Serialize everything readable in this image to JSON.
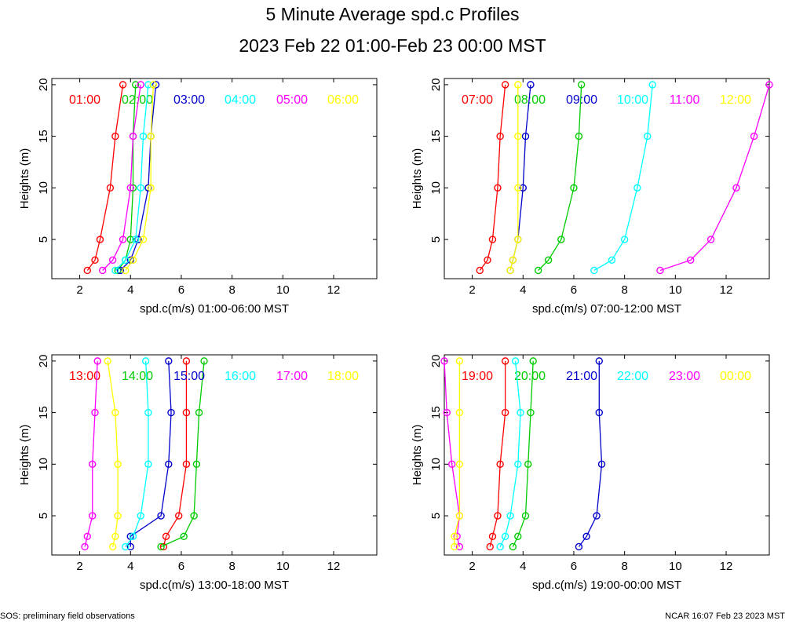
{
  "title": "5 Minute Average spd.c Profiles",
  "subtitle": "2023 Feb 22 01:00-Feb 23 00:00 MST",
  "footer_left": "SOS: preliminary field observations",
  "footer_right": "NCAR 16:07 Feb 23 2023 MST",
  "colors": {
    "red": "#ff0000",
    "green": "#00cc00",
    "blue": "#0000cc",
    "cyan": "#00ffff",
    "magenta": "#ff00ff",
    "yellow": "#ffff00",
    "black": "#000000",
    "background": "#ffffff"
  },
  "chart_data": [
    {
      "type": "line",
      "xlabel": "spd.c(m/s) 01:00-06:00 MST",
      "ylabel": "Heights (m)",
      "xlim": [
        0.9,
        13.7
      ],
      "ylim": [
        1.2,
        20.6
      ],
      "xticks": [
        2,
        4,
        6,
        8,
        10,
        12
      ],
      "yticks": [
        5,
        10,
        15,
        20
      ],
      "heights": [
        2,
        3,
        5,
        10,
        15,
        20
      ],
      "series": [
        {
          "name": "01:00",
          "color": "red",
          "values": [
            2.3,
            2.6,
            2.8,
            3.2,
            3.4,
            3.7
          ]
        },
        {
          "name": "02:00",
          "color": "green",
          "values": [
            3.5,
            3.8,
            4.0,
            4.1,
            4.1,
            4.2
          ]
        },
        {
          "name": "03:00",
          "color": "blue",
          "values": [
            3.6,
            4.0,
            4.3,
            4.7,
            4.8,
            5.0
          ]
        },
        {
          "name": "04:00",
          "color": "cyan",
          "values": [
            3.4,
            3.8,
            4.2,
            4.4,
            4.5,
            4.7
          ]
        },
        {
          "name": "05:00",
          "color": "magenta",
          "values": [
            2.9,
            3.3,
            3.7,
            4.0,
            4.1,
            4.4
          ]
        },
        {
          "name": "06:00",
          "color": "yellow",
          "values": [
            3.8,
            4.1,
            4.5,
            4.8,
            4.8,
            4.9
          ]
        }
      ]
    },
    {
      "type": "line",
      "xlabel": "spd.c(m/s) 07:00-12:00 MST",
      "ylabel": "Heights (m)",
      "xlim": [
        0.9,
        13.7
      ],
      "ylim": [
        1.2,
        20.6
      ],
      "xticks": [
        2,
        4,
        6,
        8,
        10,
        12
      ],
      "yticks": [
        5,
        10,
        15,
        20
      ],
      "heights": [
        2,
        3,
        5,
        10,
        15,
        20
      ],
      "series": [
        {
          "name": "07:00",
          "color": "red",
          "values": [
            2.3,
            2.6,
            2.8,
            3.0,
            3.1,
            3.3
          ]
        },
        {
          "name": "08:00",
          "color": "green",
          "values": [
            4.6,
            5.0,
            5.5,
            6.0,
            6.2,
            6.3
          ]
        },
        {
          "name": "09:00",
          "color": "blue",
          "values": [
            3.5,
            3.6,
            3.8,
            4.0,
            4.1,
            4.3
          ]
        },
        {
          "name": "10:00",
          "color": "cyan",
          "values": [
            6.8,
            7.5,
            8.0,
            8.5,
            8.9,
            9.1
          ]
        },
        {
          "name": "11:00",
          "color": "magenta",
          "values": [
            9.4,
            10.6,
            11.4,
            12.4,
            13.1,
            13.7
          ]
        },
        {
          "name": "12:00",
          "color": "yellow",
          "values": [
            3.5,
            3.6,
            3.8,
            3.8,
            3.8,
            3.8
          ]
        }
      ]
    },
    {
      "type": "line",
      "xlabel": "spd.c(m/s) 13:00-18:00 MST",
      "ylabel": "Heights (m)",
      "xlim": [
        0.9,
        13.7
      ],
      "ylim": [
        1.2,
        20.6
      ],
      "xticks": [
        2,
        4,
        6,
        8,
        10,
        12
      ],
      "yticks": [
        5,
        10,
        15,
        20
      ],
      "heights": [
        2,
        3,
        5,
        10,
        15,
        20
      ],
      "series": [
        {
          "name": "13:00",
          "color": "red",
          "values": [
            5.3,
            5.4,
            5.9,
            6.2,
            6.2,
            6.2
          ]
        },
        {
          "name": "14:00",
          "color": "green",
          "values": [
            5.2,
            6.1,
            6.5,
            6.6,
            6.7,
            6.9
          ]
        },
        {
          "name": "15:00",
          "color": "blue",
          "values": [
            4.0,
            4.0,
            5.2,
            5.5,
            5.6,
            5.5
          ]
        },
        {
          "name": "16:00",
          "color": "cyan",
          "values": [
            3.8,
            4.1,
            4.4,
            4.7,
            4.7,
            4.6
          ]
        },
        {
          "name": "17:00",
          "color": "magenta",
          "values": [
            2.2,
            2.3,
            2.5,
            2.5,
            2.6,
            2.7
          ]
        },
        {
          "name": "18:00",
          "color": "yellow",
          "values": [
            3.3,
            3.4,
            3.5,
            3.5,
            3.4,
            3.1
          ]
        }
      ]
    },
    {
      "type": "line",
      "xlabel": "spd.c(m/s) 19:00-00:00 MST",
      "ylabel": "Heights (m)",
      "xlim": [
        0.9,
        13.7
      ],
      "ylim": [
        1.2,
        20.6
      ],
      "xticks": [
        2,
        4,
        6,
        8,
        10,
        12
      ],
      "yticks": [
        5,
        10,
        15,
        20
      ],
      "heights": [
        2,
        3,
        5,
        10,
        15,
        20
      ],
      "series": [
        {
          "name": "19:00",
          "color": "red",
          "values": [
            2.7,
            2.8,
            3.0,
            3.1,
            3.3,
            3.3
          ]
        },
        {
          "name": "20:00",
          "color": "green",
          "values": [
            3.6,
            3.8,
            4.1,
            4.2,
            4.3,
            4.4
          ]
        },
        {
          "name": "21:00",
          "color": "blue",
          "values": [
            6.2,
            6.5,
            6.9,
            7.1,
            7.0,
            7.0
          ]
        },
        {
          "name": "22:00",
          "color": "cyan",
          "values": [
            3.1,
            3.3,
            3.5,
            3.8,
            3.9,
            3.7
          ]
        },
        {
          "name": "23:00",
          "color": "magenta",
          "values": [
            1.5,
            1.4,
            1.5,
            1.2,
            1.0,
            0.9
          ]
        },
        {
          "name": "00:00",
          "color": "yellow",
          "values": [
            1.3,
            1.3,
            1.5,
            1.5,
            1.5,
            1.5
          ]
        }
      ]
    }
  ]
}
